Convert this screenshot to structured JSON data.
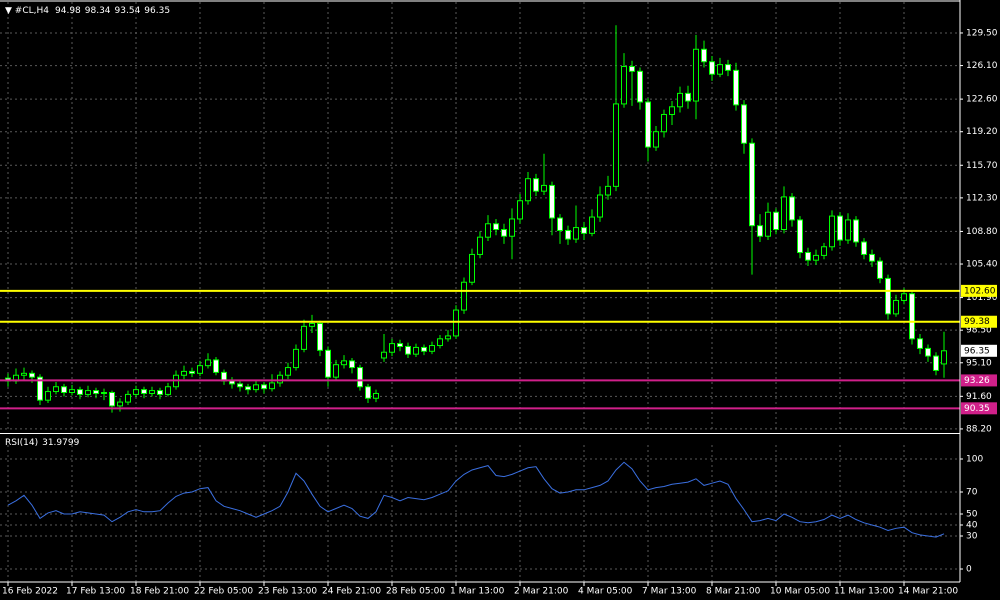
{
  "chart_data": [
    {
      "type": "candlestick",
      "title": "#CL,H4",
      "categories": [
        "16 Feb 2022",
        null,
        null,
        null,
        null,
        null,
        null,
        null,
        "17 Feb 13:00",
        null,
        null,
        null,
        null,
        null,
        null,
        null,
        "18 Feb 21:00",
        null,
        null,
        null,
        null,
        null,
        null,
        null,
        "22 Feb 05:00",
        null,
        null,
        null,
        null,
        null,
        null,
        null,
        "23 Feb 13:00",
        null,
        null,
        null,
        null,
        null,
        null,
        null,
        "24 Feb 21:00",
        null,
        null,
        null,
        null,
        null,
        null,
        null,
        "28 Feb 05:00",
        null,
        null,
        null,
        null,
        null,
        null,
        null,
        "1 Mar 13:00",
        null,
        null,
        null,
        null,
        null,
        null,
        null,
        "2 Mar 21:00",
        null,
        null,
        null,
        null,
        null,
        null,
        null,
        "4 Mar 05:00",
        null,
        null,
        null,
        null,
        null,
        null,
        null,
        "7 Mar 13:00",
        null,
        null,
        null,
        null,
        null,
        null,
        null,
        "8 Mar 21:00",
        null,
        null,
        null,
        null,
        null,
        null,
        null,
        "10 Mar 05:00",
        null,
        null,
        null,
        null,
        null,
        null,
        null,
        "11 Mar 13:00",
        null,
        null,
        null,
        null,
        null,
        null,
        null,
        "14 Mar 21:00",
        null,
        null,
        null,
        null,
        null
      ],
      "open": [
        93.5,
        93.2,
        93.8,
        94.0,
        93.6,
        91.2,
        92.1,
        92.6,
        92.0,
        92.3,
        91.8,
        92.2,
        91.9,
        92.0,
        90.6,
        91.0,
        91.8,
        92.3,
        91.9,
        92.2,
        91.8,
        92.6,
        93.8,
        94.2,
        94.0,
        94.8,
        95.4,
        94.1,
        93.2,
        92.9,
        92.6,
        92.3,
        92.8,
        92.4,
        93.0,
        93.8,
        94.6,
        96.5,
        98.9,
        99.2,
        96.4,
        93.6,
        94.9,
        95.3,
        94.6,
        92.6,
        91.4,
        95.6,
        96.2,
        97.1,
        96.8,
        96.0,
        96.7,
        96.3,
        96.9,
        97.6,
        97.9,
        100.6,
        103.5,
        106.4,
        108.2,
        109.6,
        109.0,
        108.3,
        110.1,
        112.0,
        114.3,
        113.0,
        113.6,
        110.2,
        108.9,
        108.0,
        109.2,
        108.6,
        110.3,
        112.6,
        113.5,
        122.1,
        126.0,
        125.5,
        122.3,
        117.6,
        119.2,
        121.0,
        121.8,
        123.2,
        122.4,
        127.8,
        126.5,
        125.2,
        126.2,
        125.6,
        122.0,
        118.0,
        109.4,
        108.3,
        110.8,
        109.0,
        112.4,
        110.0,
        106.6,
        105.8,
        106.3,
        107.2,
        110.4,
        107.9,
        110.0,
        107.7,
        106.4,
        105.7,
        103.9,
        100.2,
        101.6,
        102.3,
        97.6,
        96.6,
        95.8,
        94.98
      ],
      "high": [
        94.0,
        94.5,
        94.6,
        94.3,
        93.9,
        92.6,
        93.1,
        92.9,
        92.8,
        92.6,
        92.7,
        92.5,
        92.4,
        92.2,
        91.4,
        92.2,
        92.7,
        92.6,
        92.6,
        92.5,
        93.0,
        94.3,
        94.8,
        94.6,
        95.3,
        96.1,
        95.7,
        94.4,
        93.6,
        93.2,
        92.9,
        93.3,
        93.1,
        93.9,
        94.2,
        95.1,
        97.0,
        99.6,
        100.1,
        99.5,
        96.8,
        95.4,
        95.9,
        95.6,
        94.9,
        92.9,
        92.3,
        98.1,
        97.6,
        97.5,
        97.2,
        97.1,
        97.0,
        97.3,
        98.0,
        98.5,
        101.1,
        104.0,
        107.0,
        108.8,
        110.5,
        110.1,
        109.6,
        111.2,
        112.7,
        115.0,
        114.8,
        116.9,
        114.0,
        110.6,
        109.4,
        111.5,
        109.8,
        111.1,
        113.5,
        114.6,
        130.3,
        127.4,
        126.6,
        125.9,
        122.7,
        119.8,
        121.5,
        122.4,
        123.9,
        124.0,
        129.3,
        128.7,
        127.1,
        126.9,
        126.7,
        126.4,
        122.5,
        118.5,
        110.6,
        111.8,
        111.2,
        113.5,
        112.8,
        110.4,
        107.1,
        106.9,
        107.6,
        111.0,
        110.8,
        110.7,
        110.4,
        108.1,
        106.9,
        106.1,
        104.3,
        102.2,
        102.9,
        102.6,
        98.1,
        97.0,
        96.2,
        98.34
      ],
      "low": [
        92.6,
        92.9,
        93.3,
        93.0,
        90.7,
        90.9,
        91.8,
        91.6,
        91.7,
        91.3,
        91.5,
        91.4,
        91.2,
        89.9,
        90.0,
        90.7,
        91.5,
        91.4,
        91.6,
        91.3,
        91.6,
        92.3,
        93.4,
        93.6,
        93.7,
        94.5,
        93.8,
        92.8,
        92.4,
        92.1,
        91.8,
        92.0,
        91.9,
        92.1,
        92.6,
        93.4,
        94.3,
        96.2,
        98.2,
        95.8,
        92.6,
        93.2,
        94.5,
        94.0,
        92.2,
        90.9,
        91.0,
        95.2,
        95.8,
        96.3,
        95.6,
        95.7,
        95.9,
        96.0,
        96.6,
        97.3,
        97.6,
        100.2,
        103.2,
        106.0,
        107.8,
        108.4,
        107.5,
        105.9,
        109.6,
        111.6,
        112.5,
        112.6,
        108.4,
        107.5,
        107.4,
        107.6,
        107.9,
        108.3,
        109.8,
        112.1,
        113.0,
        121.7,
        121.9,
        121.5,
        116.1,
        117.2,
        118.6,
        119.9,
        121.2,
        121.6,
        120.5,
        125.9,
        124.5,
        124.9,
        125.0,
        121.4,
        116.9,
        104.3,
        107.7,
        107.9,
        108.5,
        108.6,
        109.3,
        106.0,
        105.2,
        105.3,
        105.9,
        106.8,
        107.3,
        107.5,
        107.2,
        105.9,
        105.1,
        103.4,
        99.6,
        99.9,
        101.2,
        97.0,
        96.0,
        95.2,
        93.8,
        93.54
      ],
      "close": [
        93.2,
        93.8,
        94.0,
        93.6,
        91.2,
        92.1,
        92.6,
        92.0,
        92.3,
        91.8,
        92.2,
        91.9,
        92.0,
        90.6,
        91.0,
        91.8,
        92.3,
        91.9,
        92.2,
        91.8,
        92.6,
        93.8,
        94.2,
        94.0,
        94.8,
        95.4,
        94.1,
        93.2,
        92.9,
        92.6,
        92.3,
        92.8,
        92.4,
        93.0,
        93.8,
        94.6,
        96.5,
        98.9,
        99.2,
        96.4,
        93.6,
        94.9,
        95.3,
        94.6,
        92.6,
        91.4,
        91.9,
        96.2,
        97.1,
        96.8,
        96.0,
        96.7,
        96.3,
        96.9,
        97.6,
        97.9,
        100.6,
        103.5,
        106.4,
        108.2,
        109.6,
        109.0,
        108.3,
        110.1,
        112.0,
        114.3,
        113.0,
        113.6,
        110.2,
        108.9,
        108.0,
        109.2,
        108.6,
        110.3,
        112.6,
        113.5,
        122.1,
        126.0,
        125.5,
        122.3,
        117.6,
        119.2,
        121.0,
        121.8,
        123.2,
        122.4,
        127.8,
        126.5,
        125.2,
        126.2,
        125.6,
        122.0,
        118.0,
        109.4,
        108.3,
        110.8,
        109.0,
        112.4,
        110.0,
        106.6,
        105.8,
        106.3,
        107.2,
        110.4,
        107.9,
        110.0,
        107.7,
        106.4,
        105.7,
        103.9,
        100.2,
        101.6,
        102.3,
        97.6,
        96.6,
        95.8,
        94.3,
        96.35
      ],
      "up_color": "#000000",
      "down_color": "#ffffff",
      "edge_color": "#00ff00",
      "ylim": [
        87.88,
        132.73
      ],
      "yticks": [
        {
          "value": 129.5,
          "label": "129.50"
        },
        {
          "value": 126.1,
          "label": "126.10"
        },
        {
          "value": 122.6,
          "label": "122.60"
        },
        {
          "value": 119.2,
          "label": "119.20"
        },
        {
          "value": 115.7,
          "label": "115.70"
        },
        {
          "value": 112.3,
          "label": "112.30"
        },
        {
          "value": 108.8,
          "label": "108.80"
        },
        {
          "value": 105.4,
          "label": "105.40"
        },
        {
          "value": 101.9,
          "label": "101.90"
        },
        {
          "value": 98.5,
          "label": "98.50"
        },
        {
          "value": 95.1,
          "label": "95.10"
        },
        {
          "value": 91.6,
          "label": "91.60"
        },
        {
          "value": 88.2,
          "label": "88.20"
        }
      ],
      "grid": true,
      "levels": [
        {
          "value": 102.6,
          "label": "102.60",
          "color": "#ffff00",
          "text_color": "#000000"
        },
        {
          "value": 99.38,
          "label": "99.38",
          "color": "#ffff00",
          "text_color": "#000000"
        },
        {
          "value": 93.26,
          "label": "93.26",
          "color": "#d0208a",
          "text_color": "#ffffff"
        },
        {
          "value": 90.35,
          "label": "90.35",
          "color": "#d0208a",
          "text_color": "#ffffff"
        }
      ]
    },
    {
      "type": "line",
      "title": "RSI(14)",
      "values": [
        58,
        62,
        67,
        58,
        46,
        51,
        53,
        50,
        50,
        52,
        51,
        50,
        49,
        43,
        47,
        52,
        54,
        52,
        52,
        53,
        60,
        66,
        69,
        70,
        73,
        74,
        62,
        57,
        55,
        53,
        50,
        47,
        50,
        53,
        57,
        70,
        87,
        80,
        68,
        57,
        52,
        55,
        58,
        55,
        48,
        46,
        52,
        67,
        65,
        62,
        65,
        64,
        63,
        65,
        68,
        71,
        80,
        86,
        90,
        92,
        94,
        85,
        84,
        86,
        89,
        92,
        93,
        82,
        73,
        69,
        70,
        72,
        72,
        74,
        76,
        80,
        90,
        97,
        91,
        80,
        72,
        74,
        75,
        77,
        78,
        79,
        82,
        76,
        78,
        80,
        77,
        64,
        54,
        43,
        44,
        46,
        44,
        50,
        47,
        43,
        42,
        43,
        45,
        49,
        46,
        49,
        45,
        42,
        40,
        38,
        35,
        37,
        38,
        33,
        31,
        30,
        29,
        31.9799
      ],
      "color": "#3a6fe0",
      "ylim": [
        -11.8,
        121.8
      ],
      "yticks": [
        100,
        70,
        50,
        40,
        30,
        0
      ],
      "grid": true
    }
  ]
}
